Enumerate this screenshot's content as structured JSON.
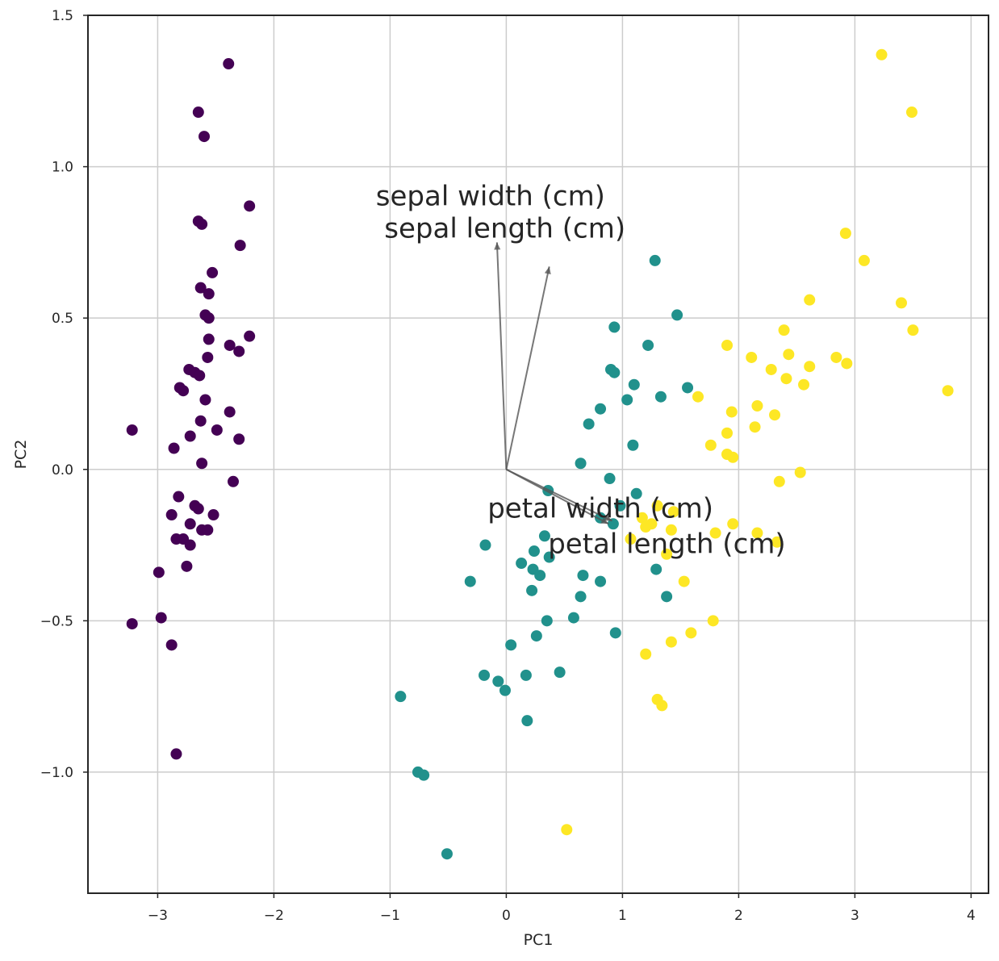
{
  "chart_data": {
    "type": "scatter",
    "title": "",
    "xlabel": "PC1",
    "ylabel": "PC2",
    "xlim": [
      -3.6,
      4.15
    ],
    "ylim": [
      -1.4,
      1.5
    ],
    "xticks": [
      -3,
      -2,
      -1,
      0,
      1,
      2,
      3,
      4
    ],
    "yticks": [
      -1.0,
      -0.5,
      0.0,
      0.5,
      1.0,
      1.5
    ],
    "xtick_labels": [
      "−3",
      "−2",
      "−1",
      "0",
      "1",
      "2",
      "3",
      "4"
    ],
    "ytick_labels": [
      "−1.0",
      "−0.5",
      "0.0",
      "0.5",
      "1.0",
      "1.5"
    ],
    "grid": true,
    "series": [
      {
        "color": "#440154",
        "points": [
          [
            -2.39,
            1.34
          ],
          [
            -2.65,
            1.18
          ],
          [
            -2.6,
            1.1
          ],
          [
            -2.21,
            0.87
          ],
          [
            -2.65,
            0.82
          ],
          [
            -2.62,
            0.81
          ],
          [
            -2.29,
            0.74
          ],
          [
            -2.53,
            0.65
          ],
          [
            -2.63,
            0.6
          ],
          [
            -2.56,
            0.58
          ],
          [
            -2.59,
            0.51
          ],
          [
            -2.56,
            0.5
          ],
          [
            -2.21,
            0.44
          ],
          [
            -2.56,
            0.43
          ],
          [
            -2.38,
            0.41
          ],
          [
            -2.3,
            0.39
          ],
          [
            -2.57,
            0.37
          ],
          [
            -2.73,
            0.33
          ],
          [
            -2.68,
            0.32
          ],
          [
            -2.64,
            0.31
          ],
          [
            -2.81,
            0.27
          ],
          [
            -2.78,
            0.26
          ],
          [
            -2.59,
            0.23
          ],
          [
            -2.38,
            0.19
          ],
          [
            -2.63,
            0.16
          ],
          [
            -2.49,
            0.13
          ],
          [
            -2.72,
            0.11
          ],
          [
            -2.3,
            0.1
          ],
          [
            -2.86,
            0.07
          ],
          [
            -2.62,
            0.02
          ],
          [
            -2.35,
            -0.04
          ],
          [
            -2.82,
            -0.09
          ],
          [
            -2.68,
            -0.12
          ],
          [
            -2.65,
            -0.13
          ],
          [
            -2.88,
            -0.15
          ],
          [
            -2.52,
            -0.15
          ],
          [
            -2.72,
            -0.18
          ],
          [
            -2.62,
            -0.2
          ],
          [
            -2.57,
            -0.2
          ],
          [
            -2.84,
            -0.23
          ],
          [
            -2.78,
            -0.23
          ],
          [
            -2.72,
            -0.25
          ],
          [
            -2.75,
            -0.32
          ],
          [
            -2.99,
            -0.34
          ],
          [
            -3.22,
            -0.51
          ],
          [
            -2.97,
            -0.49
          ],
          [
            -2.88,
            -0.58
          ],
          [
            -2.84,
            -0.94
          ],
          [
            -3.22,
            0.13
          ]
        ]
      },
      {
        "color": "#21918c",
        "points": [
          [
            1.28,
            0.69
          ],
          [
            1.47,
            0.51
          ],
          [
            0.93,
            0.47
          ],
          [
            1.22,
            0.41
          ],
          [
            0.9,
            0.33
          ],
          [
            0.93,
            0.32
          ],
          [
            1.1,
            0.28
          ],
          [
            1.56,
            0.27
          ],
          [
            1.33,
            0.24
          ],
          [
            1.04,
            0.23
          ],
          [
            0.81,
            0.2
          ],
          [
            0.71,
            0.15
          ],
          [
            1.09,
            0.08
          ],
          [
            0.64,
            0.02
          ],
          [
            0.89,
            -0.03
          ],
          [
            0.36,
            -0.07
          ],
          [
            1.12,
            -0.08
          ],
          [
            0.98,
            -0.12
          ],
          [
            0.81,
            -0.16
          ],
          [
            0.92,
            -0.18
          ],
          [
            0.33,
            -0.22
          ],
          [
            -0.18,
            -0.25
          ],
          [
            0.24,
            -0.27
          ],
          [
            0.37,
            -0.29
          ],
          [
            0.13,
            -0.31
          ],
          [
            0.23,
            -0.33
          ],
          [
            0.29,
            -0.35
          ],
          [
            1.29,
            -0.33
          ],
          [
            0.66,
            -0.35
          ],
          [
            -0.31,
            -0.37
          ],
          [
            0.81,
            -0.37
          ],
          [
            0.22,
            -0.4
          ],
          [
            0.64,
            -0.42
          ],
          [
            1.38,
            -0.42
          ],
          [
            0.58,
            -0.49
          ],
          [
            0.35,
            -0.5
          ],
          [
            0.94,
            -0.54
          ],
          [
            0.26,
            -0.55
          ],
          [
            0.04,
            -0.58
          ],
          [
            -0.19,
            -0.68
          ],
          [
            0.17,
            -0.68
          ],
          [
            0.46,
            -0.67
          ],
          [
            -0.07,
            -0.7
          ],
          [
            -0.01,
            -0.73
          ],
          [
            -0.91,
            -0.75
          ],
          [
            0.18,
            -0.83
          ],
          [
            -0.76,
            -1.0
          ],
          [
            -0.71,
            -1.01
          ],
          [
            -0.51,
            -1.27
          ]
        ]
      },
      {
        "color": "#fde725",
        "points": [
          [
            3.23,
            1.37
          ],
          [
            3.49,
            1.18
          ],
          [
            2.92,
            0.78
          ],
          [
            3.08,
            0.69
          ],
          [
            2.61,
            0.56
          ],
          [
            3.4,
            0.55
          ],
          [
            2.39,
            0.46
          ],
          [
            3.5,
            0.46
          ],
          [
            1.9,
            0.41
          ],
          [
            2.11,
            0.37
          ],
          [
            2.43,
            0.38
          ],
          [
            2.84,
            0.37
          ],
          [
            2.93,
            0.35
          ],
          [
            2.28,
            0.33
          ],
          [
            2.61,
            0.34
          ],
          [
            2.41,
            0.3
          ],
          [
            2.56,
            0.28
          ],
          [
            3.8,
            0.26
          ],
          [
            1.65,
            0.24
          ],
          [
            2.16,
            0.21
          ],
          [
            1.94,
            0.19
          ],
          [
            2.31,
            0.18
          ],
          [
            2.14,
            0.14
          ],
          [
            1.9,
            0.12
          ],
          [
            1.76,
            0.08
          ],
          [
            1.9,
            0.05
          ],
          [
            1.95,
            0.04
          ],
          [
            2.53,
            -0.01
          ],
          [
            2.35,
            -0.04
          ],
          [
            1.3,
            -0.12
          ],
          [
            1.44,
            -0.14
          ],
          [
            1.17,
            -0.16
          ],
          [
            1.95,
            -0.18
          ],
          [
            1.25,
            -0.18
          ],
          [
            1.8,
            -0.21
          ],
          [
            2.16,
            -0.21
          ],
          [
            2.33,
            -0.24
          ],
          [
            1.38,
            -0.28
          ],
          [
            1.53,
            -0.37
          ],
          [
            1.78,
            -0.5
          ],
          [
            1.59,
            -0.54
          ],
          [
            1.42,
            -0.57
          ],
          [
            1.2,
            -0.61
          ],
          [
            1.3,
            -0.76
          ],
          [
            1.34,
            -0.78
          ],
          [
            0.52,
            -1.19
          ],
          [
            1.42,
            -0.2
          ],
          [
            1.2,
            -0.19
          ],
          [
            1.07,
            -0.23
          ]
        ]
      }
    ],
    "loadings": [
      {
        "label": "sepal width (cm)",
        "x": -0.08,
        "y": 0.75
      },
      {
        "label": "sepal length (cm)",
        "x": 0.37,
        "y": 0.67
      },
      {
        "label": "petal width (cm)",
        "x": 0.88,
        "y": -0.18
      },
      {
        "label": "petal length (cm)",
        "x": 0.91,
        "y": -0.17
      }
    ],
    "loading_arrow_color": "#555555"
  }
}
